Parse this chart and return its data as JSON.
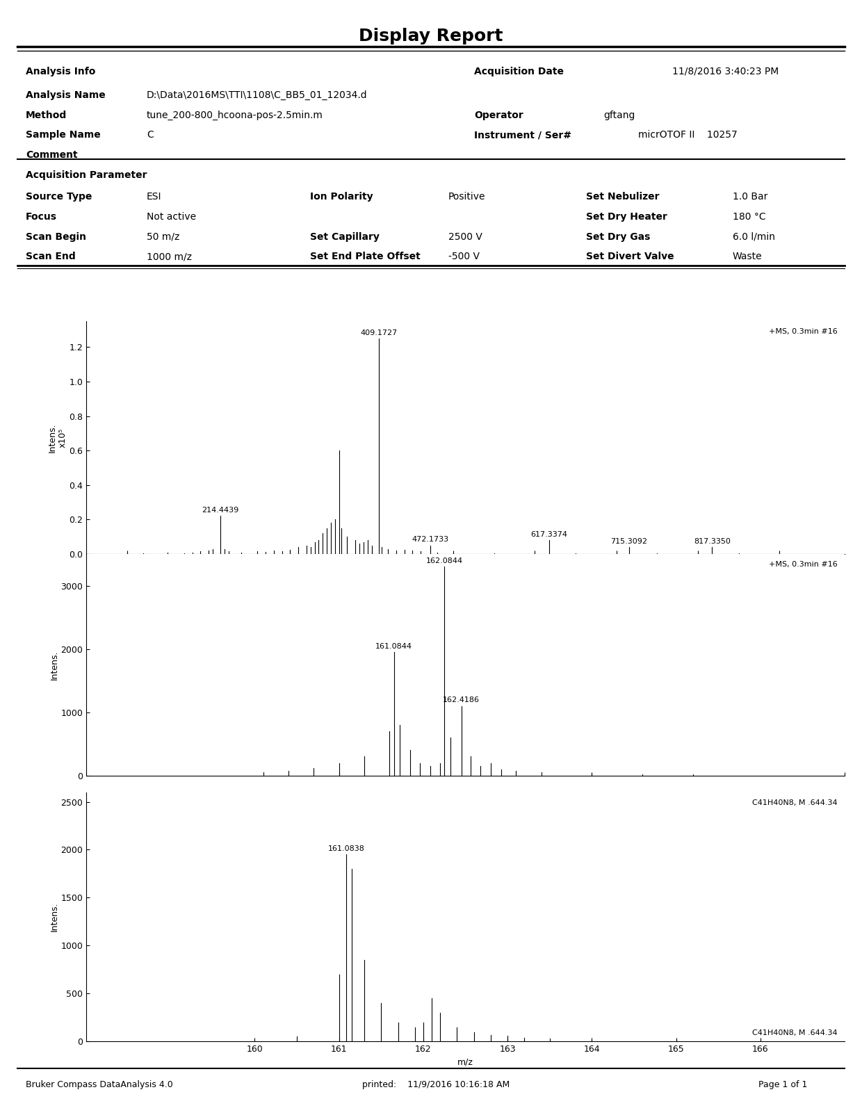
{
  "title": "Display Report",
  "header_lines": [
    [
      "Analysis Info",
      "",
      "",
      "Acquisition Date",
      "11/8/2016 3:40:23 PM"
    ],
    [
      "Analysis Name",
      "D:\\Data\\2016MS\\TTI\\1108\\C_BB5_01_12034.d",
      "",
      "",
      ""
    ],
    [
      "Method",
      "tune_200-800_hcoona-pos-2.5min.m",
      "",
      "Operator",
      "gftang"
    ],
    [
      "Sample Name",
      "C",
      "",
      "Instrument / Ser#",
      "micrOTOF II    10257"
    ],
    [
      "Comment",
      "",
      "",
      "",
      ""
    ]
  ],
  "acq_param_title": "Acquisition Parameter",
  "acq_params": [
    [
      "Source Type",
      "ESI",
      "Ion Polarity",
      "Positive",
      "Set Nebulizer",
      "1.0 Bar"
    ],
    [
      "Focus",
      "Not active",
      "",
      "",
      "Set Dry Heater",
      "180 °C"
    ],
    [
      "Scan Begin",
      "50 m/z",
      "Set Capillary",
      "2500 V",
      "Set Dry Gas",
      "6.0 l/min"
    ],
    [
      "Scan End",
      "1000 m/z",
      "Set End Plate Offset",
      "-500 V",
      "Set Divert Valve",
      "Waste"
    ]
  ],
  "spectrum1": {
    "label": "+MS, 0.3min #16",
    "ylabel": "Intens.\nx10⁵",
    "xlabel": "m/z",
    "xlim": [
      50,
      980
    ],
    "ylim": [
      0,
      1.35
    ],
    "yticks": [
      0.0,
      0.2,
      0.4,
      0.6,
      0.8,
      1.0,
      1.2
    ],
    "xticks": [
      100,
      200,
      300,
      400,
      500,
      600,
      700,
      800,
      900
    ],
    "peaks": [
      {
        "mz": 100,
        "intensity": 0.005
      },
      {
        "mz": 120,
        "intensity": 0.003
      },
      {
        "mz": 150,
        "intensity": 0.008
      },
      {
        "mz": 170,
        "intensity": 0.005
      },
      {
        "mz": 180,
        "intensity": 0.01
      },
      {
        "mz": 190,
        "intensity": 0.015
      },
      {
        "mz": 200,
        "intensity": 0.02
      },
      {
        "mz": 205,
        "intensity": 0.03
      },
      {
        "mz": 214.4439,
        "intensity": 0.22,
        "label": "214.4439"
      },
      {
        "mz": 220,
        "intensity": 0.03
      },
      {
        "mz": 225,
        "intensity": 0.015
      },
      {
        "mz": 240,
        "intensity": 0.01
      },
      {
        "mz": 260,
        "intensity": 0.015
      },
      {
        "mz": 270,
        "intensity": 0.012
      },
      {
        "mz": 280,
        "intensity": 0.02
      },
      {
        "mz": 290,
        "intensity": 0.015
      },
      {
        "mz": 300,
        "intensity": 0.025
      },
      {
        "mz": 310,
        "intensity": 0.04
      },
      {
        "mz": 320,
        "intensity": 0.05
      },
      {
        "mz": 325,
        "intensity": 0.04
      },
      {
        "mz": 330,
        "intensity": 0.07
      },
      {
        "mz": 335,
        "intensity": 0.08
      },
      {
        "mz": 340,
        "intensity": 0.12
      },
      {
        "mz": 345,
        "intensity": 0.15
      },
      {
        "mz": 350,
        "intensity": 0.18
      },
      {
        "mz": 355,
        "intensity": 0.2
      },
      {
        "mz": 360,
        "intensity": 0.6
      },
      {
        "mz": 363,
        "intensity": 0.15
      },
      {
        "mz": 370,
        "intensity": 0.1
      },
      {
        "mz": 380,
        "intensity": 0.08
      },
      {
        "mz": 385,
        "intensity": 0.06
      },
      {
        "mz": 390,
        "intensity": 0.07
      },
      {
        "mz": 395,
        "intensity": 0.08
      },
      {
        "mz": 400,
        "intensity": 0.05
      },
      {
        "mz": 409.1727,
        "intensity": 1.25,
        "label": "409.1727"
      },
      {
        "mz": 412,
        "intensity": 0.04
      },
      {
        "mz": 420,
        "intensity": 0.03
      },
      {
        "mz": 430,
        "intensity": 0.02
      },
      {
        "mz": 440,
        "intensity": 0.025
      },
      {
        "mz": 450,
        "intensity": 0.02
      },
      {
        "mz": 460,
        "intensity": 0.015
      },
      {
        "mz": 472.1733,
        "intensity": 0.05,
        "label": "472.1733"
      },
      {
        "mz": 480,
        "intensity": 0.01
      },
      {
        "mz": 500,
        "intensity": 0.005
      },
      {
        "mz": 550,
        "intensity": 0.005
      },
      {
        "mz": 600,
        "intensity": 0.005
      },
      {
        "mz": 617.3374,
        "intensity": 0.08,
        "label": "617.3374"
      },
      {
        "mz": 650,
        "intensity": 0.005
      },
      {
        "mz": 700,
        "intensity": 0.005
      },
      {
        "mz": 715.3092,
        "intensity": 0.04,
        "label": "715.3092"
      },
      {
        "mz": 750,
        "intensity": 0.005
      },
      {
        "mz": 800,
        "intensity": 0.005
      },
      {
        "mz": 817.335,
        "intensity": 0.04,
        "label": "817.3350"
      },
      {
        "mz": 850,
        "intensity": 0.003
      },
      {
        "mz": 900,
        "intensity": 0.002
      }
    ]
  },
  "spectrum2": {
    "label": "+MS, 0.3min #16",
    "ylabel": "Intens.",
    "xlabel": "",
    "xlim": [
      155,
      170
    ],
    "ylim": [
      0,
      3500
    ],
    "yticks": [
      0,
      1000,
      2000,
      3000
    ],
    "xticks": [
      155,
      160,
      165,
      170
    ],
    "peaks": [
      {
        "mz": 158.5,
        "intensity": 50
      },
      {
        "mz": 159.0,
        "intensity": 80
      },
      {
        "mz": 159.5,
        "intensity": 120
      },
      {
        "mz": 160.0,
        "intensity": 200
      },
      {
        "mz": 160.5,
        "intensity": 300
      },
      {
        "mz": 161.0,
        "intensity": 700
      },
      {
        "mz": 161.0844,
        "intensity": 1950,
        "label": "161.0844"
      },
      {
        "mz": 161.2,
        "intensity": 800
      },
      {
        "mz": 161.4,
        "intensity": 400
      },
      {
        "mz": 161.6,
        "intensity": 200
      },
      {
        "mz": 161.8,
        "intensity": 150
      },
      {
        "mz": 162.0,
        "intensity": 200
      },
      {
        "mz": 162.0844,
        "intensity": 3300,
        "label": "162.0844"
      },
      {
        "mz": 162.2,
        "intensity": 600
      },
      {
        "mz": 162.4186,
        "intensity": 1100,
        "label": "162.4186"
      },
      {
        "mz": 162.6,
        "intensity": 300
      },
      {
        "mz": 162.8,
        "intensity": 150
      },
      {
        "mz": 163.0,
        "intensity": 200
      },
      {
        "mz": 163.2,
        "intensity": 100
      },
      {
        "mz": 163.5,
        "intensity": 80
      },
      {
        "mz": 164.0,
        "intensity": 50
      },
      {
        "mz": 165.0,
        "intensity": 30
      },
      {
        "mz": 166.0,
        "intensity": 20
      },
      {
        "mz": 167.0,
        "intensity": 15
      }
    ]
  },
  "spectrum3": {
    "label": "C41H40N8, M .644.34",
    "ylabel": "Intens.",
    "xlabel": "m/z",
    "xlim": [
      158,
      167
    ],
    "ylim": [
      0,
      2600
    ],
    "yticks": [
      0,
      500,
      1000,
      1500,
      2000,
      2500
    ],
    "xticks": [
      160,
      161,
      162,
      163,
      164,
      165,
      166
    ],
    "peaks": [
      {
        "mz": 160.5,
        "intensity": 50
      },
      {
        "mz": 161.0,
        "intensity": 700
      },
      {
        "mz": 161.0838,
        "intensity": 1950,
        "label": "161.0838"
      },
      {
        "mz": 161.15,
        "intensity": 1800
      },
      {
        "mz": 161.3,
        "intensity": 850
      },
      {
        "mz": 161.5,
        "intensity": 400
      },
      {
        "mz": 161.7,
        "intensity": 200
      },
      {
        "mz": 161.9,
        "intensity": 150
      },
      {
        "mz": 162.0,
        "intensity": 200
      },
      {
        "mz": 162.1,
        "intensity": 450
      },
      {
        "mz": 162.2,
        "intensity": 300
      },
      {
        "mz": 162.4,
        "intensity": 150
      },
      {
        "mz": 162.6,
        "intensity": 100
      },
      {
        "mz": 162.8,
        "intensity": 70
      },
      {
        "mz": 163.0,
        "intensity": 60
      },
      {
        "mz": 163.2,
        "intensity": 40
      },
      {
        "mz": 163.5,
        "intensity": 30
      },
      {
        "mz": 164.0,
        "intensity": 20
      },
      {
        "mz": 165.0,
        "intensity": 15
      }
    ]
  },
  "footer": "Bruker Compass DataAnalysis 4.0          printed:    11/9/2016 10:16:18 AM                      Page 1 of 1"
}
